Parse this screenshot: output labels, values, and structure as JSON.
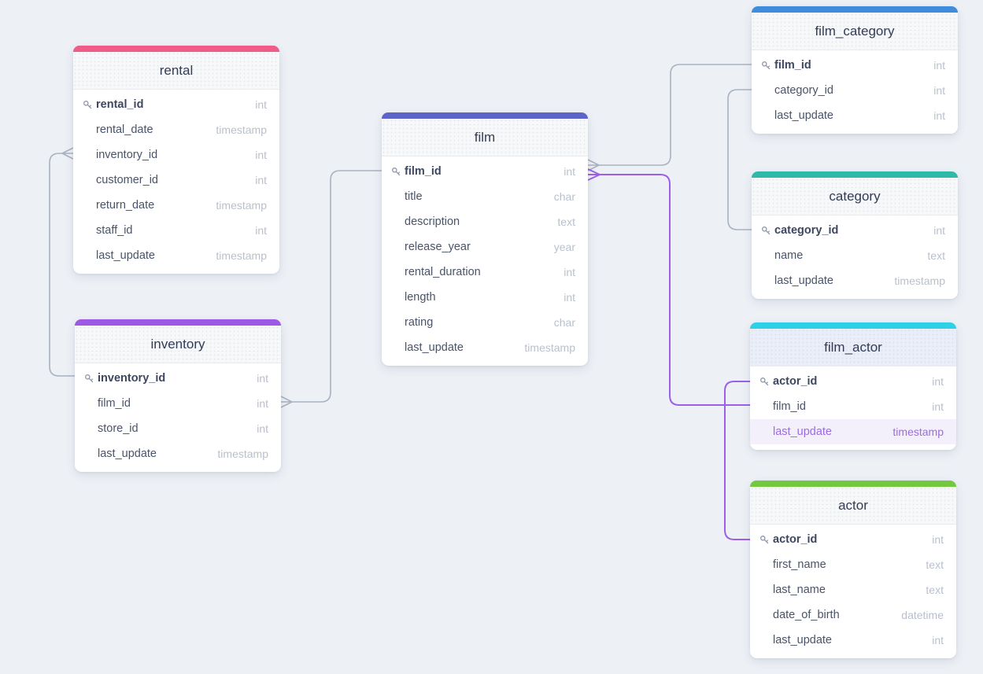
{
  "colors": {
    "canvas_background": "#edf1f6",
    "connector_gray": "#a9b2c0",
    "connector_purple": "#9c5fe8",
    "highlight_row_background": "#f4f0fb",
    "highlight_row_text": "#9d6ae6"
  },
  "tables": [
    {
      "id": "rental",
      "title": "rental",
      "accent": "#f05c87",
      "fields": [
        {
          "name": "rental_id",
          "type": "int",
          "pk": true
        },
        {
          "name": "rental_date",
          "type": "timestamp"
        },
        {
          "name": "inventory_id",
          "type": "int"
        },
        {
          "name": "customer_id",
          "type": "int"
        },
        {
          "name": "return_date",
          "type": "timestamp"
        },
        {
          "name": "staff_id",
          "type": "int"
        },
        {
          "name": "last_update",
          "type": "timestamp"
        }
      ]
    },
    {
      "id": "inventory",
      "title": "inventory",
      "accent": "#9d59e3",
      "fields": [
        {
          "name": "inventory_id",
          "type": "int",
          "pk": true
        },
        {
          "name": "film_id",
          "type": "int"
        },
        {
          "name": "store_id",
          "type": "int"
        },
        {
          "name": "last_update",
          "type": "timestamp"
        }
      ]
    },
    {
      "id": "film",
      "title": "film",
      "accent": "#5c64c8",
      "fields": [
        {
          "name": "film_id",
          "type": "int",
          "pk": true
        },
        {
          "name": "title",
          "type": "char"
        },
        {
          "name": "description",
          "type": "text"
        },
        {
          "name": "release_year",
          "type": "year"
        },
        {
          "name": "rental_duration",
          "type": "int"
        },
        {
          "name": "length",
          "type": "int"
        },
        {
          "name": "rating",
          "type": "char"
        },
        {
          "name": "last_update",
          "type": "timestamp"
        }
      ]
    },
    {
      "id": "film_category",
      "title": "film_category",
      "accent": "#3e8cdb",
      "fields": [
        {
          "name": "film_id",
          "type": "int",
          "pk": true
        },
        {
          "name": "category_id",
          "type": "int"
        },
        {
          "name": "last_update",
          "type": "int"
        }
      ]
    },
    {
      "id": "category",
      "title": "category",
      "accent": "#2fb9a9",
      "fields": [
        {
          "name": "category_id",
          "type": "int",
          "pk": true
        },
        {
          "name": "name",
          "type": "text"
        },
        {
          "name": "last_update",
          "type": "timestamp"
        }
      ]
    },
    {
      "id": "film_actor",
      "title": "film_actor",
      "accent": "#2ed0e6",
      "header_tint": "#e9eef9",
      "fields": [
        {
          "name": "actor_id",
          "type": "int",
          "pk": true
        },
        {
          "name": "film_id",
          "type": "int"
        },
        {
          "name": "last_update",
          "type": "timestamp",
          "highlight": true
        }
      ]
    },
    {
      "id": "actor",
      "title": "actor",
      "accent": "#74c83d",
      "fields": [
        {
          "name": "actor_id",
          "type": "int",
          "pk": true
        },
        {
          "name": "first_name",
          "type": "text"
        },
        {
          "name": "last_name",
          "type": "text"
        },
        {
          "name": "date_of_birth",
          "type": "datetime"
        },
        {
          "name": "last_update",
          "type": "int"
        }
      ]
    }
  ],
  "relationships": [
    {
      "id": "rental-inventory",
      "from": "rental.inventory_id",
      "to": "inventory.inventory_id",
      "color": "gray"
    },
    {
      "id": "inventory-film",
      "from": "inventory.film_id",
      "to": "film.film_id",
      "color": "gray"
    },
    {
      "id": "film-film_category",
      "from": "film.film_id",
      "to": "film_category.film_id",
      "color": "gray"
    },
    {
      "id": "film_category-category",
      "from": "film_category.category_id",
      "to": "category.category_id",
      "color": "gray"
    },
    {
      "id": "film-film_actor",
      "from": "film.film_id",
      "to": "film_actor.film_id",
      "color": "purple"
    },
    {
      "id": "film_actor-actor",
      "from": "film_actor.actor_id",
      "to": "actor.actor_id",
      "color": "purple"
    }
  ]
}
